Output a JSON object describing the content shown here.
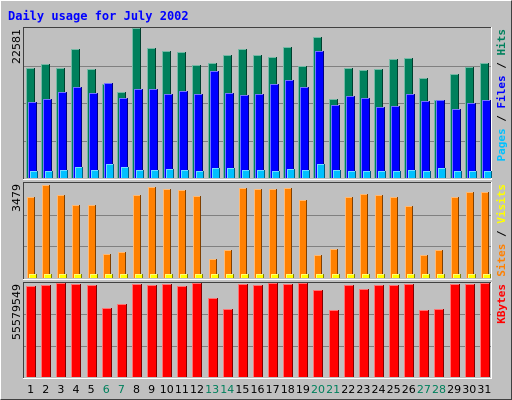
{
  "chart_data": {
    "type": "bar",
    "title": "Daily usage for July 2002",
    "days": [
      "1",
      "2",
      "3",
      "4",
      "5",
      "6",
      "7",
      "8",
      "9",
      "10",
      "11",
      "12",
      "13",
      "14",
      "15",
      "16",
      "17",
      "18",
      "19",
      "20",
      "21",
      "22",
      "23",
      "24",
      "25",
      "26",
      "27",
      "28",
      "29",
      "30",
      "31"
    ],
    "weekend_days": [
      "6",
      "7",
      "13",
      "14",
      "20",
      "21",
      "27",
      "28"
    ],
    "colors": {
      "title": "#0000ff",
      "hits": "#00805c",
      "files": "#0000ff",
      "pages": "#00c0ff",
      "visits": "#ffff00",
      "sites": "#ff8000",
      "kbytes": "#ff0000",
      "weekend_label": "#00805c",
      "weekday_label": "#000000",
      "panel_bg": "#c0c0c0"
    },
    "panels": [
      {
        "id": "hits-files-pages",
        "ymax_label": "22581",
        "ylim": [
          0,
          22581
        ],
        "legend": [
          {
            "text": "Hits",
            "color": "#00805c"
          },
          {
            "text": "Files",
            "color": "#0000ff"
          },
          {
            "text": "Pages",
            "color": "#00c0ff"
          }
        ],
        "series": [
          {
            "name": "Hits",
            "color": "#00805c",
            "values": [
              16500,
              17100,
              16500,
              19400,
              16400,
              14200,
              13000,
              22581,
              19600,
              19100,
              18900,
              17000,
              17300,
              18500,
              19400,
              18500,
              18200,
              19700,
              16900,
              21200,
              11900,
              16500,
              16200,
              16400,
              17900,
              18000,
              15100,
              11800,
              15600,
              16700,
              17300
            ]
          },
          {
            "name": "Files",
            "color": "#0000ff",
            "values": [
              11500,
              11900,
              13000,
              13700,
              12800,
              14300,
              12100,
              13400,
              13400,
              12600,
              13100,
              12700,
              16100,
              12800,
              12500,
              12700,
              14100,
              14800,
              13700,
              19100,
              11000,
              12300,
              12000,
              10700,
              10800,
              12700,
              11600,
              11800,
              10400,
              11300,
              11700
            ]
          },
          {
            "name": "Pages",
            "color": "#00c0ff",
            "values": [
              1000,
              1100,
              1200,
              1600,
              1200,
              2100,
              1700,
              1200,
              1200,
              1300,
              1200,
              1100,
              1500,
              1500,
              1200,
              1200,
              1100,
              1400,
              1200,
              2100,
              1200,
              1100,
              1100,
              1000,
              1100,
              1200,
              1000,
              1500,
              1100,
              1000,
              1100
            ]
          }
        ]
      },
      {
        "id": "visits-sites",
        "ymax_label": "3479",
        "ylim": [
          0,
          3479
        ],
        "legend": [
          {
            "text": "Visits",
            "color": "#ffff00"
          },
          {
            "text": "Sites",
            "color": "#ff8000"
          }
        ],
        "series": [
          {
            "name": "Visits",
            "color": "#ffff00",
            "values": [
              160,
              160,
              160,
              160,
              160,
              150,
              150,
              160,
              160,
              160,
              160,
              160,
              140,
              150,
              160,
              160,
              160,
              160,
              160,
              140,
              140,
              160,
              160,
              160,
              160,
              160,
              140,
              140,
              160,
              160,
              160
            ]
          },
          {
            "name": "Sites",
            "color": "#ff8000",
            "values": [
              2950,
              3400,
              3040,
              2660,
              2660,
              870,
              950,
              3040,
              3350,
              3260,
              3210,
              2990,
              680,
              1010,
              3290,
              3250,
              3250,
              3300,
              2860,
              830,
              1050,
              2960,
              3080,
              3050,
              2970,
              2650,
              830,
              1010,
              2950,
              3140,
              3150
            ]
          }
        ]
      },
      {
        "id": "kbytes",
        "ymax_label": "55579549",
        "ylim": [
          0,
          55579549
        ],
        "legend": [
          {
            "text": "KBytes",
            "color": "#ff0000"
          }
        ],
        "series": [
          {
            "name": "KBytes",
            "color": "#ff0000",
            "values": [
              53600000,
              54600000,
              55579549,
              54700000,
              54300000,
              40800000,
              42900000,
              55000000,
              54400000,
              54800000,
              54100000,
              55300000,
              47000000,
              40400000,
              54900000,
              54600000,
              55300000,
              55000000,
              55400000,
              51600000,
              39700000,
              54600000,
              52100000,
              54300000,
              54500000,
              55100000,
              39700000,
              40100000,
              54800000,
              55100000,
              55300000
            ]
          }
        ]
      }
    ]
  }
}
